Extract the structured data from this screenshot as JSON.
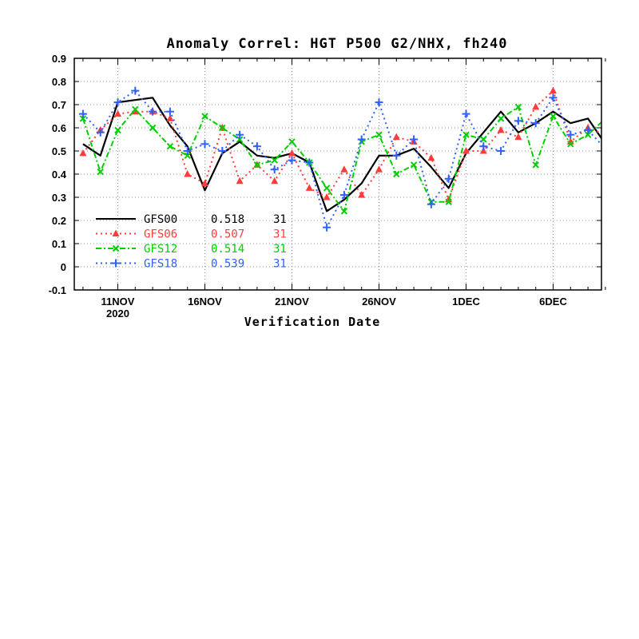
{
  "chart_data": {
    "type": "line",
    "title": "Anomaly Correl: HGT P500 G2/NHX, fh240",
    "xlabel": "Verification Date",
    "ylabel": "",
    "ylim": [
      -0.1,
      0.9
    ],
    "yticks": [
      -0.1,
      0,
      0.1,
      0.2,
      0.3,
      0.4,
      0.5,
      0.6,
      0.7,
      0.8,
      0.9
    ],
    "ytick_labels": [
      "-0.1",
      "0",
      "0.1",
      "0.2",
      "0.3",
      "0.4",
      "0.5",
      "0.6",
      "0.7",
      "0.8",
      "0.9"
    ],
    "x_dates": [
      "2020-11-09",
      "2020-11-10",
      "2020-11-11",
      "2020-11-12",
      "2020-11-13",
      "2020-11-14",
      "2020-11-15",
      "2020-11-16",
      "2020-11-17",
      "2020-11-18",
      "2020-11-19",
      "2020-11-20",
      "2020-11-21",
      "2020-11-22",
      "2020-11-23",
      "2020-11-24",
      "2020-11-25",
      "2020-11-26",
      "2020-11-27",
      "2020-11-28",
      "2020-11-29",
      "2020-11-30",
      "2020-12-01",
      "2020-12-02",
      "2020-12-03",
      "2020-12-04",
      "2020-12-05",
      "2020-12-06",
      "2020-12-07",
      "2020-12-08",
      "2020-12-09"
    ],
    "xticks": [
      {
        "date": "2020-11-11",
        "label": "11NOV",
        "sublabel": "2020"
      },
      {
        "date": "2020-11-16",
        "label": "16NOV",
        "sublabel": ""
      },
      {
        "date": "2020-11-21",
        "label": "21NOV",
        "sublabel": ""
      },
      {
        "date": "2020-11-26",
        "label": "26NOV",
        "sublabel": ""
      },
      {
        "date": "2020-12-01",
        "label": "1DEC",
        "sublabel": ""
      },
      {
        "date": "2020-12-06",
        "label": "6DEC",
        "sublabel": ""
      }
    ],
    "grid": true,
    "legend_position": "lower-left",
    "series": [
      {
        "name": "GFS00",
        "mean": "0.518",
        "count": "31",
        "color": "#000000",
        "dash": "solid",
        "marker": "none",
        "values": [
          0.53,
          0.48,
          0.71,
          0.72,
          0.73,
          0.61,
          0.52,
          0.33,
          0.49,
          0.54,
          0.48,
          0.47,
          0.49,
          0.45,
          0.24,
          0.29,
          0.36,
          0.48,
          0.48,
          0.51,
          0.43,
          0.34,
          0.49,
          0.58,
          0.67,
          0.58,
          0.62,
          0.67,
          0.62,
          0.64,
          0.53
        ]
      },
      {
        "name": "GFS06",
        "mean": "0.507",
        "count": "31",
        "color": "#ff3b3b",
        "dash": "dotted",
        "marker": "triangle",
        "values": [
          0.49,
          0.59,
          0.66,
          0.67,
          0.67,
          0.64,
          0.4,
          0.36,
          0.6,
          0.37,
          0.44,
          0.37,
          0.49,
          0.34,
          0.3,
          0.42,
          0.31,
          0.42,
          0.56,
          0.54,
          0.47,
          0.29,
          0.5,
          0.5,
          0.59,
          0.56,
          0.69,
          0.76,
          0.54,
          0.6,
          0.57
        ]
      },
      {
        "name": "GFS12",
        "mean": "0.514",
        "count": "31",
        "color": "#00d000",
        "dash": "dashdot",
        "marker": "x",
        "values": [
          0.64,
          0.41,
          0.59,
          0.68,
          0.6,
          0.52,
          0.48,
          0.65,
          0.6,
          0.55,
          0.44,
          0.46,
          0.54,
          0.45,
          0.34,
          0.24,
          0.54,
          0.57,
          0.4,
          0.44,
          0.28,
          0.28,
          0.57,
          0.55,
          0.64,
          0.69,
          0.44,
          0.65,
          0.53,
          0.57,
          0.64
        ]
      },
      {
        "name": "GFS18",
        "mean": "0.539",
        "count": "31",
        "color": "#2f5fff",
        "dash": "dotted",
        "marker": "plus",
        "values": [
          0.66,
          0.58,
          0.71,
          0.76,
          0.67,
          0.67,
          0.5,
          0.53,
          0.5,
          0.57,
          0.52,
          0.42,
          0.46,
          0.45,
          0.17,
          0.31,
          0.55,
          0.71,
          0.48,
          0.55,
          0.27,
          0.38,
          0.66,
          0.52,
          0.5,
          0.63,
          0.62,
          0.73,
          0.57,
          0.59,
          0.51
        ]
      }
    ]
  }
}
